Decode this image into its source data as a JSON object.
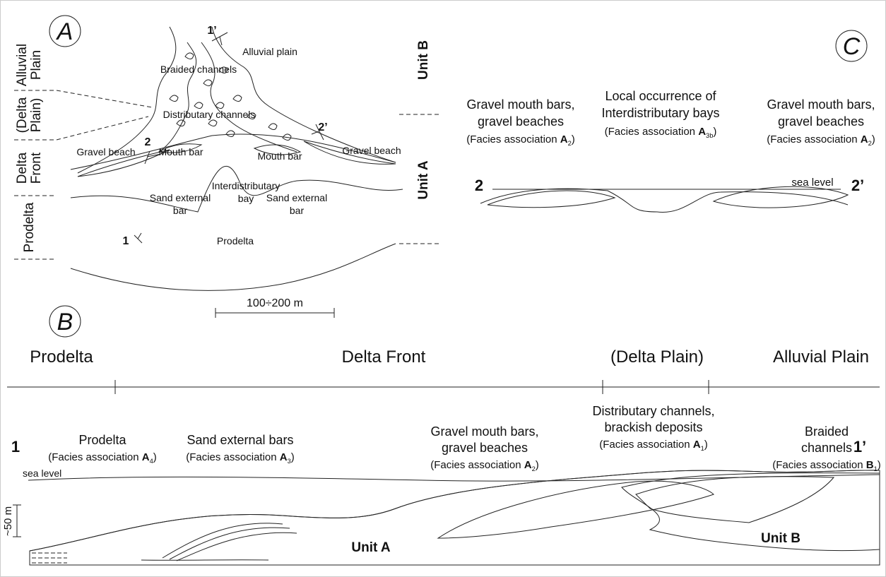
{
  "panel_a": {
    "label": "A",
    "zones": [
      [
        "Alluvial",
        "Plain"
      ],
      [
        "(Delta",
        "Plain)"
      ],
      [
        "Delta",
        "Front"
      ],
      [
        "Prodelta"
      ]
    ],
    "units": [
      "Unit B",
      "Unit A"
    ],
    "map_labels": {
      "alluvial_plain": "Alluvial plain",
      "braided_channels": "Braided channels",
      "distributary_channels": "Distributary channels",
      "gravel_beach_left": "Gravel beach",
      "mouth_bar_left": "Mouth bar",
      "mouth_bar_right": "Mouth bar",
      "gravel_beach_right": "Gravel beach",
      "interdistributary_bay": [
        "Interdistributary",
        "bay"
      ],
      "sand_bar_left": [
        "Sand external",
        "bar"
      ],
      "sand_bar_right": [
        "Sand external",
        "bar"
      ],
      "prodelta": "Prodelta"
    },
    "sections": {
      "one_prime": "1’",
      "two_prime": "2’",
      "two": "2",
      "one": "1"
    },
    "scale": "100÷200 m"
  },
  "panel_c": {
    "label": "C",
    "left": {
      "lines": [
        "Gravel mouth bars,",
        "gravel beaches"
      ],
      "facies": {
        "prefix": "(Facies association ",
        "code": "A",
        "sub": "2",
        "suffix": ")"
      }
    },
    "middle": {
      "lines": [
        "Local occurrence of",
        "Interdistributary bays"
      ],
      "facies": {
        "prefix": "(Facies association ",
        "code": "A",
        "sub": "3b",
        "suffix": ")"
      }
    },
    "right": {
      "lines": [
        "Gravel mouth bars,",
        "gravel beaches"
      ],
      "facies": {
        "prefix": "(Facies association ",
        "code": "A",
        "sub": "2",
        "suffix": ")"
      }
    },
    "start": "2",
    "end": "2’",
    "sea_level": "sea level"
  },
  "panel_b": {
    "label": "B",
    "zones": [
      "Prodelta",
      "Delta Front",
      "(Delta Plain)",
      "Alluvial Plain"
    ],
    "start": "1",
    "end": "1’",
    "columns": [
      {
        "lines": [
          "Prodelta"
        ],
        "facies": {
          "prefix": "(Facies association ",
          "code": "A",
          "sub": "4",
          "suffix": ")"
        }
      },
      {
        "lines": [
          "Sand external bars"
        ],
        "facies": {
          "prefix": "(Facies association ",
          "code": "A",
          "sub": "3",
          "suffix": ")"
        }
      },
      {
        "lines": [
          "Gravel mouth bars,",
          "gravel beaches"
        ],
        "facies": {
          "prefix": "(Facies association ",
          "code": "A",
          "sub": "2",
          "suffix": ")"
        }
      },
      {
        "lines": [
          "Distributary channels,",
          "brackish deposits"
        ],
        "facies": {
          "prefix": "(Facies association ",
          "code": "A",
          "sub": "1",
          "suffix": ")"
        }
      },
      {
        "lines": [
          "Braided",
          "channels"
        ],
        "facies": {
          "prefix": "(Facies association ",
          "code": "B",
          "sub": "1",
          "suffix": ")"
        }
      }
    ],
    "sea_level": "sea level",
    "scale": "~50 m",
    "units": [
      "Unit A",
      "Unit B"
    ]
  }
}
